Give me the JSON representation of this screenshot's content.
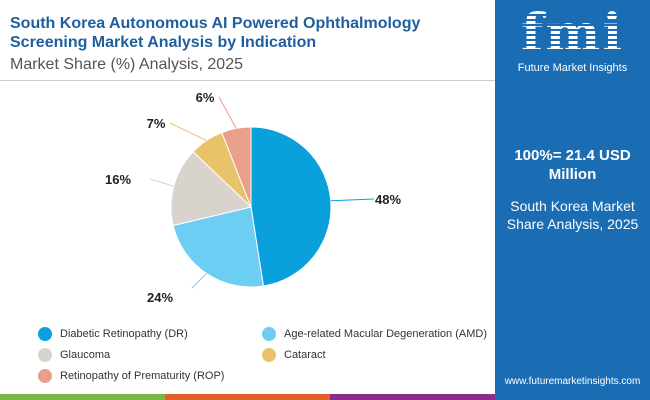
{
  "header": {
    "title": "South Korea Autonomous AI Powered Ophthalmology Screening Market Analysis by Indication",
    "subtitle": "Market Share (%) Analysis, 2025"
  },
  "panel": {
    "logo_text": "fmi",
    "logo_caption": "Future Market Insights",
    "total": "100%= 21.4 USD Million",
    "share_label": "South Korea Market Share Analysis, 2025",
    "url": "www.futuremarketinsights.com"
  },
  "chart_data": {
    "type": "pie",
    "title": "Market Share (%) Analysis, 2025",
    "categories": [
      "Diabetic Retinopathy (DR)",
      "Age-related Macular Degeneration (AMD)",
      "Glaucoma",
      "Cataract",
      "Retinopathy of Prematurity (ROP)"
    ],
    "values": [
      48,
      24,
      16,
      7,
      6
    ],
    "labels": [
      "48%",
      "24%",
      "16%",
      "7%",
      "6%"
    ],
    "colors": [
      "#0aa0dc",
      "#6dcdf2",
      "#d9d3ce",
      "#e9c36a",
      "#e9a08a"
    ],
    "legend_position": "bottom"
  }
}
